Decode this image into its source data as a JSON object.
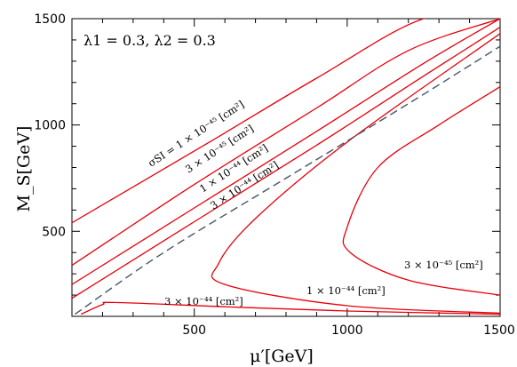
{
  "chart_data": {
    "type": "line",
    "xlabel": "μ′[GeV]",
    "ylabel": "M_S[GeV]",
    "xlim": [
      100,
      1500
    ],
    "ylim": [
      100,
      1500
    ],
    "x_ticks": [
      500,
      1000,
      1500
    ],
    "y_ticks": [
      500,
      1000,
      1500
    ],
    "x_tick_labels": [
      "500",
      "1000",
      "1500"
    ],
    "y_tick_labels": [
      "500",
      "1000",
      "1500"
    ],
    "grid": false,
    "parameters": "λ1 = 0.3,    λ2 = 0.3",
    "contours": [
      {
        "label": "σSI = 1 × 10⁻⁴⁵ [cm²]",
        "color": "#e8000b",
        "x": [
          100,
          550,
          900,
          1250,
          1500
        ],
        "y": [
          540,
          920,
          1220,
          1500,
          1500
        ]
      },
      {
        "label": "3 × 10⁻⁴⁵ [cm²]",
        "color": "#e8000b",
        "x": [
          100,
          500,
          900,
          1200,
          1500
        ],
        "y": [
          340,
          720,
          1080,
          1350,
          1500
        ]
      },
      {
        "label": "1 × 10⁻⁴⁴ [cm²]",
        "color": "#e8000b",
        "x": [
          100,
          500,
          900,
          1250,
          1500
        ],
        "y": [
          250,
          610,
          970,
          1290,
          1500
        ]
      },
      {
        "label": "3 × 10⁻⁴⁴ [cm²]",
        "color": "#e8000b",
        "x": [
          100,
          500,
          900,
          1250,
          1500
        ],
        "y": [
          185,
          545,
          905,
          1230,
          1460
        ]
      },
      {
        "label": "",
        "color": "#e8000b",
        "x": [
          130,
          200,
          240,
          600,
          1000,
          1500
        ],
        "y": [
          110,
          155,
          165,
          145,
          125,
          110
        ]
      },
      {
        "label": "1 × 10⁻⁴⁴ [cm²]",
        "color": "#e8000b",
        "x": [
          1500,
          1000,
          600,
          580,
          700,
          1000,
          1500
        ],
        "y": [
          115,
          150,
          250,
          350,
          560,
          920,
          1430
        ]
      },
      {
        "label": "3 × 10⁻⁴⁵ [cm²]",
        "color": "#e8000b",
        "x": [
          1500,
          1200,
          1010,
          1000,
          1100,
          1300,
          1500
        ],
        "y": [
          200,
          270,
          400,
          520,
          800,
          1000,
          1180
        ]
      },
      {
        "label": "",
        "color": "#445566",
        "dashed": true,
        "x": [
          110,
          400,
          800,
          1200,
          1500
        ],
        "y": [
          110,
          400,
          750,
          1100,
          1370
        ]
      }
    ],
    "annotations": [
      {
        "text": "σSI = 1 × 10⁻⁴⁵ [cm²]"
      },
      {
        "text": "3 × 10⁻⁴⁵ [cm²]"
      },
      {
        "text": "1 × 10⁻⁴⁴ [cm²]"
      },
      {
        "text": "3 × 10⁻⁴⁴ [cm²]"
      },
      {
        "text": "3 × 10⁻⁴⁴ [cm²]"
      },
      {
        "text": "1 × 10⁻⁴⁴ [cm²]"
      },
      {
        "text": "3 × 10⁻⁴⁵ [cm²]"
      }
    ]
  }
}
